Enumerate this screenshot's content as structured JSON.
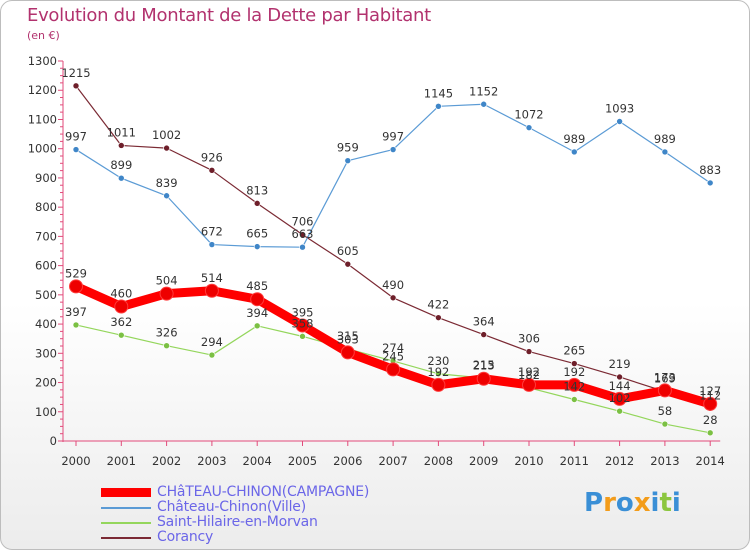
{
  "header": {
    "title": "Evolution du Montant de la Dette par Habitant",
    "subtitle": "(en €)"
  },
  "logo": {
    "text": "Proxiti",
    "letters": [
      {
        "ch": "P",
        "color": "#3a8fd6"
      },
      {
        "ch": "r",
        "color": "#f39c1a"
      },
      {
        "ch": "o",
        "color": "#3a8fd6"
      },
      {
        "ch": "x",
        "color": "#f39c1a"
      },
      {
        "ch": "i",
        "color": "#3a8fd6"
      },
      {
        "ch": "t",
        "color": "#8cc63f"
      },
      {
        "ch": "i",
        "color": "#3a8fd6"
      }
    ]
  },
  "chart_data": {
    "type": "line",
    "title": "Evolution du Montant de la Dette par Habitant",
    "subtitle": "(en €)",
    "x": [
      "2000",
      "2001",
      "2002",
      "2003",
      "2004",
      "2005",
      "2006",
      "2007",
      "2008",
      "2009",
      "2010",
      "2011",
      "2012",
      "2013",
      "2014"
    ],
    "ylim": [
      0,
      1300
    ],
    "yticks": [
      0,
      100,
      200,
      300,
      400,
      500,
      600,
      700,
      800,
      900,
      1000,
      1100,
      1200,
      1300
    ],
    "grid": false,
    "legend_position": "bottom-left",
    "series": [
      {
        "name": "Saint-Hilaire-en-Morvan",
        "color": "#94d65c",
        "marker": "#7bc043",
        "width": 1.2,
        "values": [
          397,
          362,
          326,
          294,
          394,
          358,
          315,
          274,
          230,
          215,
          182,
          142,
          102,
          58,
          28
        ]
      },
      {
        "name": "Corancy",
        "color": "#7b2a34",
        "marker": "#6e1f2a",
        "width": 1.2,
        "values": [
          1215,
          1011,
          1002,
          926,
          813,
          706,
          605,
          490,
          422,
          364,
          306,
          265,
          219,
          169,
          112
        ]
      },
      {
        "name": "Château-Chinon(Ville)",
        "color": "#5b9bd5",
        "marker": "#3f86c8",
        "width": 1.2,
        "values": [
          997,
          899,
          839,
          672,
          665,
          663,
          959,
          997,
          1145,
          1152,
          1072,
          989,
          1093,
          989,
          883
        ]
      },
      {
        "name": "CHâTEAU-CHINON(CAMPAGNE)",
        "color": "#ff0000",
        "marker": "#ee0000",
        "width": 9,
        "values": [
          529,
          460,
          504,
          514,
          485,
          395,
          303,
          245,
          192,
          213,
          192,
          192,
          144,
          173,
          127
        ]
      }
    ],
    "data_labels": [
      {
        "series": 0,
        "texts": [
          "397",
          "362",
          "326",
          "294",
          "394",
          "358",
          "315",
          "274",
          "230",
          "215",
          "182",
          "142",
          "102",
          "58",
          "28"
        ]
      },
      {
        "series": 1,
        "texts": [
          "1215",
          "1011",
          "1002",
          "926",
          "813",
          "706",
          "605",
          "490",
          "422",
          "364",
          "306",
          "265",
          "219",
          "169",
          "112"
        ]
      },
      {
        "series": 2,
        "texts": [
          "997",
          "899",
          "839",
          "672",
          "665",
          "663",
          "959",
          "997",
          "1145",
          "1152",
          "1072",
          "989",
          "1093",
          "989",
          "883"
        ]
      },
      {
        "series": 3,
        "texts": [
          "529",
          "460",
          "504",
          "514",
          "485",
          "395",
          "303",
          "245",
          "192",
          "213",
          "192",
          "192",
          "144",
          "173",
          "127"
        ]
      }
    ],
    "legend_order": [
      3,
      2,
      0,
      1
    ]
  }
}
